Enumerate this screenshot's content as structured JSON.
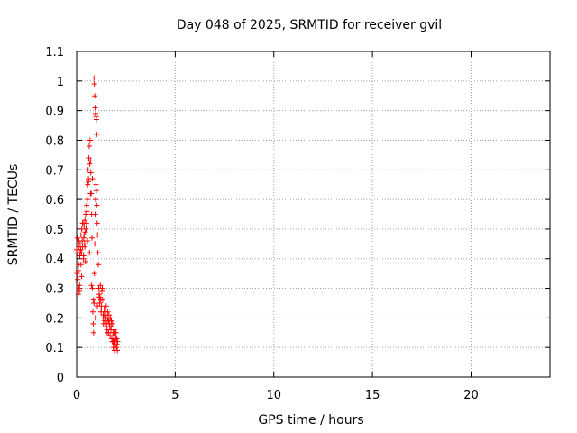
{
  "chart_data": {
    "type": "scatter",
    "title": "Day 048 of 2025, SRMTID for receiver gvil",
    "xlabel": "GPS time / hours",
    "ylabel": "SRMTID / TECUs",
    "xlim": [
      0,
      24
    ],
    "ylim": [
      0,
      1.1
    ],
    "xticks": [
      0,
      5,
      10,
      15,
      20
    ],
    "yticks": [
      0,
      0.1,
      0.2,
      0.3,
      0.4,
      0.5,
      0.6,
      0.7,
      0.8,
      0.9,
      1,
      1.1
    ],
    "ytick_labels": [
      "0",
      "0.1",
      "0.2",
      "0.3",
      "0.4",
      "0.5",
      "0.6",
      "0.7",
      "0.8",
      "0.9",
      "1",
      "1.1"
    ],
    "grid": true,
    "marker": "+",
    "color": "#ff0000",
    "series": [
      {
        "name": "gvil",
        "x": [
          0.0,
          0.02,
          0.04,
          0.06,
          0.08,
          0.1,
          0.12,
          0.14,
          0.16,
          0.18,
          0.2,
          0.22,
          0.24,
          0.26,
          0.28,
          0.3,
          0.32,
          0.34,
          0.36,
          0.38,
          0.4,
          0.42,
          0.44,
          0.46,
          0.48,
          0.5,
          0.52,
          0.54,
          0.56,
          0.58,
          0.6,
          0.62,
          0.64,
          0.66,
          0.68,
          0.7,
          0.72,
          0.74,
          0.76,
          0.78,
          0.8,
          0.82,
          0.84,
          0.86,
          0.88,
          0.9,
          0.92,
          0.94,
          0.96,
          0.98,
          1.0,
          1.02,
          1.04,
          1.06,
          1.08,
          1.1,
          1.12,
          1.14,
          1.16,
          1.18,
          1.2,
          1.22,
          1.24,
          1.26,
          1.28,
          1.3,
          1.32,
          1.34,
          1.36,
          1.38,
          1.4,
          1.42,
          1.44,
          1.46,
          1.48,
          1.5,
          1.52,
          1.54,
          1.56,
          1.58,
          1.6,
          1.62,
          1.64,
          1.66,
          1.68,
          1.7,
          1.72,
          1.74,
          1.76,
          1.78,
          1.8,
          1.82,
          1.84,
          1.86,
          1.88,
          1.9,
          1.92,
          1.94,
          1.96,
          1.98,
          2.0,
          2.02,
          2.04,
          2.06,
          2.08,
          0.05,
          0.1,
          0.15,
          0.2,
          0.25,
          0.35,
          0.45,
          0.55,
          0.65,
          0.75,
          0.85,
          0.95,
          1.05,
          1.15,
          1.25,
          1.35,
          1.45,
          1.55,
          1.65,
          1.75,
          1.85,
          1.95,
          2.05,
          0.88,
          0.9,
          0.92,
          0.94,
          0.96,
          0.98,
          1.0,
          1.02,
          0.08,
          0.12,
          0.18,
          0.22,
          0.3,
          0.38,
          0.42,
          0.5,
          0.6,
          0.7,
          0.8
        ],
        "y": [
          0.43,
          0.35,
          0.47,
          0.42,
          0.28,
          0.44,
          0.46,
          0.29,
          0.41,
          0.45,
          0.43,
          0.48,
          0.42,
          0.5,
          0.46,
          0.44,
          0.52,
          0.4,
          0.47,
          0.51,
          0.45,
          0.53,
          0.49,
          0.55,
          0.5,
          0.58,
          0.56,
          0.6,
          0.65,
          0.7,
          0.67,
          0.74,
          0.78,
          0.72,
          0.8,
          0.73,
          0.69,
          0.62,
          0.55,
          0.47,
          0.3,
          0.22,
          0.18,
          0.15,
          0.25,
          0.35,
          0.45,
          0.55,
          0.6,
          0.65,
          0.63,
          0.58,
          0.52,
          0.48,
          0.42,
          0.38,
          0.3,
          0.28,
          0.25,
          0.27,
          0.31,
          0.26,
          0.22,
          0.24,
          0.29,
          0.3,
          0.26,
          0.2,
          0.18,
          0.21,
          0.23,
          0.19,
          0.17,
          0.22,
          0.2,
          0.24,
          0.18,
          0.16,
          0.2,
          0.22,
          0.19,
          0.15,
          0.21,
          0.18,
          0.17,
          0.14,
          0.2,
          0.16,
          0.19,
          0.13,
          0.12,
          0.18,
          0.15,
          0.1,
          0.14,
          0.16,
          0.09,
          0.12,
          0.11,
          0.13,
          0.15,
          0.1,
          0.13,
          0.09,
          0.12,
          0.33,
          0.38,
          0.31,
          0.43,
          0.34,
          0.41,
          0.39,
          0.46,
          0.42,
          0.31,
          0.26,
          0.2,
          0.24,
          0.27,
          0.23,
          0.21,
          0.18,
          0.15,
          0.19,
          0.17,
          0.12,
          0.15,
          0.11,
          1.01,
          0.99,
          0.95,
          0.91,
          0.89,
          0.88,
          0.87,
          0.82,
          0.36,
          0.3,
          0.42,
          0.38,
          0.52,
          0.48,
          0.44,
          0.52,
          0.66,
          0.62,
          0.67
        ]
      }
    ]
  }
}
